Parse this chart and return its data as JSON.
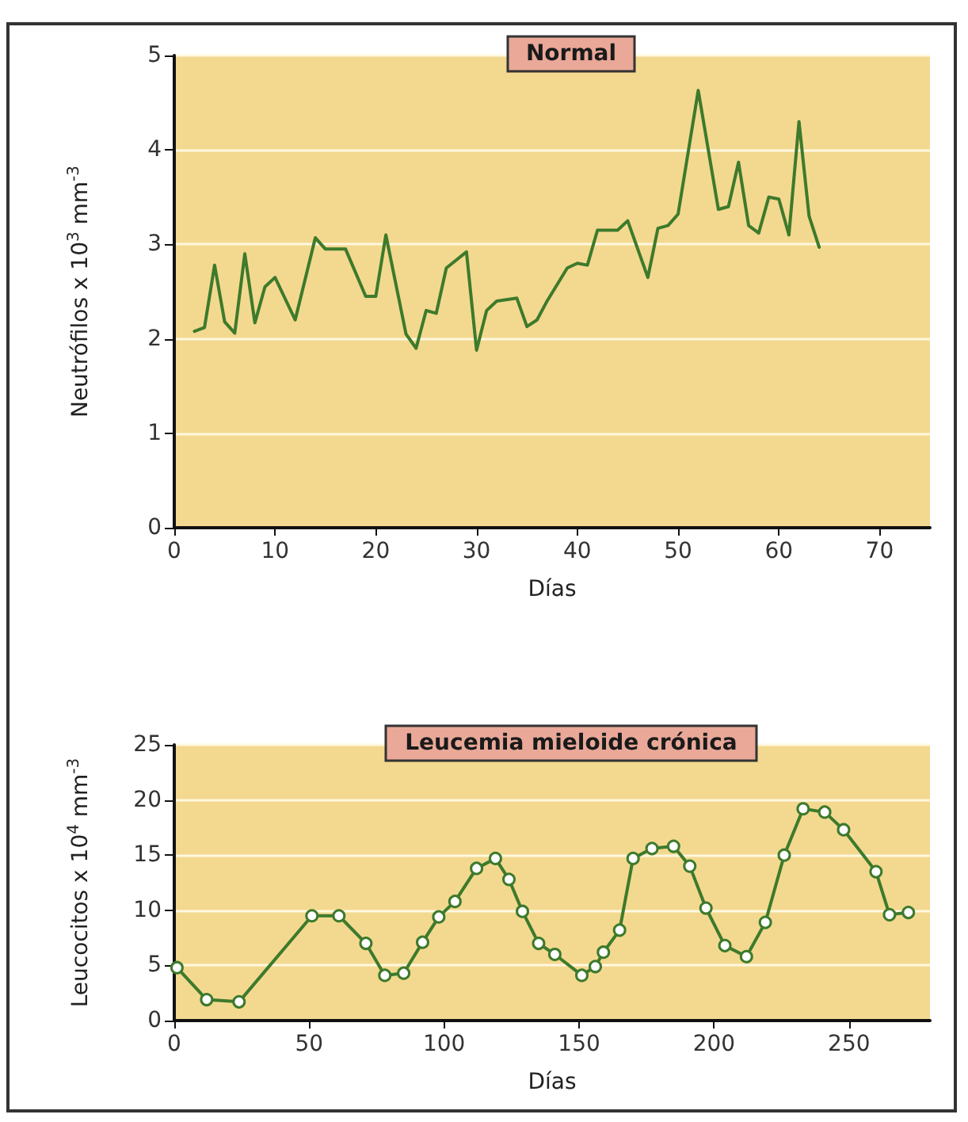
{
  "chart_data": [
    {
      "type": "line",
      "title": "Normal",
      "xlabel": "Días",
      "ylabel": "Neutrófilos x 10$^{3}$ mm$^{-3}$",
      "x": [
        2,
        3,
        4,
        5,
        6,
        7,
        8,
        9,
        10,
        12,
        14,
        15,
        17,
        19,
        20,
        21,
        23,
        24,
        25,
        26,
        27,
        29,
        30,
        31,
        32,
        34,
        35,
        36,
        37,
        39,
        40,
        41,
        42,
        44,
        45,
        47,
        48,
        49,
        50,
        52,
        54,
        55,
        56,
        57,
        58,
        59,
        60,
        61,
        62,
        63,
        64
      ],
      "series": [
        {
          "color": "#3d7a2c",
          "values": [
            2.08,
            2.12,
            2.78,
            2.18,
            2.06,
            2.9,
            2.17,
            2.55,
            2.65,
            2.2,
            3.07,
            2.95,
            2.95,
            2.45,
            2.45,
            3.1,
            2.05,
            1.9,
            2.3,
            2.27,
            2.75,
            2.92,
            1.88,
            2.3,
            2.4,
            2.43,
            2.13,
            2.2,
            2.4,
            2.75,
            2.8,
            2.78,
            3.15,
            3.15,
            3.25,
            2.65,
            3.17,
            3.2,
            3.32,
            4.63,
            3.37,
            3.4,
            3.87,
            3.2,
            3.12,
            3.5,
            3.48,
            3.1,
            4.3,
            3.3,
            2.97
          ]
        }
      ],
      "xlim": [
        0,
        75
      ],
      "xticks": [
        0,
        10,
        20,
        30,
        40,
        50,
        60,
        70
      ],
      "ylim": [
        0,
        5
      ],
      "yticks": [
        0,
        1,
        2,
        3,
        4,
        5
      ],
      "grid": "y",
      "marker": "none",
      "line_style": "solid"
    },
    {
      "type": "line",
      "title": "Leucemia mieloide crónica",
      "xlabel": "Días",
      "ylabel": "Leucocitos x 10$^{4}$ mm$^{-3}$",
      "x": [
        1,
        12,
        24,
        51,
        61,
        71,
        78,
        85,
        92,
        98,
        104,
        112,
        119,
        124,
        129,
        135,
        141,
        151,
        156,
        159,
        165,
        170,
        177,
        185,
        191,
        197,
        204,
        212,
        219,
        226,
        233,
        241,
        248,
        260,
        265,
        272
      ],
      "series": [
        {
          "color": "#3d7a2c",
          "values": [
            4.8,
            1.9,
            1.7,
            9.5,
            9.5,
            7.0,
            4.1,
            4.3,
            7.1,
            9.4,
            10.8,
            13.8,
            14.7,
            12.8,
            9.9,
            7.0,
            6.0,
            4.1,
            4.9,
            6.2,
            8.2,
            14.7,
            15.6,
            15.8,
            14.0,
            10.2,
            6.8,
            5.8,
            8.9,
            15.0,
            19.2,
            18.9,
            17.3,
            13.5,
            9.6,
            9.8
          ]
        }
      ],
      "xlim": [
        0,
        280
      ],
      "xticks": [
        0,
        50,
        100,
        150,
        200,
        250
      ],
      "ylim": [
        0,
        25
      ],
      "yticks": [
        0,
        5,
        10,
        15,
        20,
        25
      ],
      "grid": "y",
      "marker": "circle",
      "line_style": "solid"
    }
  ]
}
